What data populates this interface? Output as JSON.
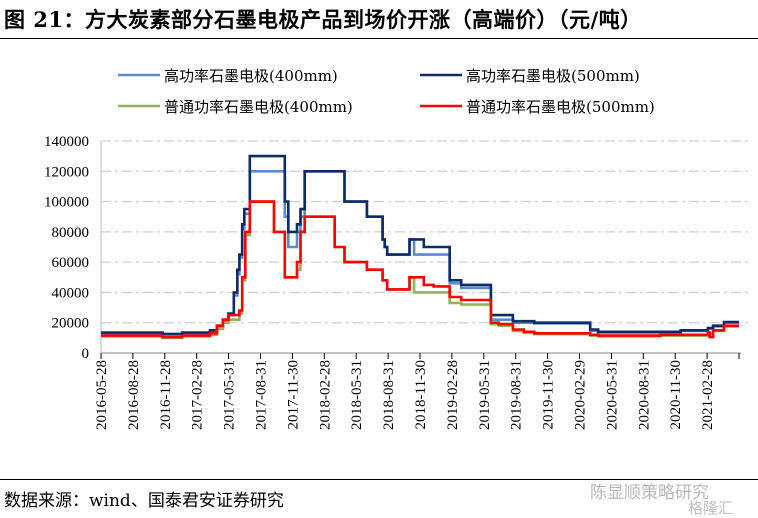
{
  "title": "图 21：方大炭素部分石墨电极产品到场价开涨（高端价）（元/吨）",
  "source": "数据来源：wind、国泰君安证券研究",
  "watermark": "陈显顺策略研究",
  "watermark2": "格隆汇",
  "chart_data": {
    "type": "line",
    "step": true,
    "title": "方大炭素部分石墨电极产品到场价开涨（高端价）（元/吨）",
    "xlabel": "",
    "ylabel": "元/吨",
    "ylim": [
      0,
      140000
    ],
    "yticks": [
      "0",
      "20000",
      "40000",
      "60000",
      "80000",
      "100000",
      "120000",
      "140000"
    ],
    "xlim": [
      "2016-05-28",
      "2021-05-28"
    ],
    "xticks": [
      "2016-05-28",
      "2016-08-28",
      "2016-11-28",
      "2017-02-28",
      "2017-05-31",
      "2017-08-31",
      "2017-11-30",
      "2018-02-28",
      "2018-05-31",
      "2018-08-31",
      "2018-11-30",
      "2019-02-28",
      "2019-05-31",
      "2019-08-31",
      "2019-11-30",
      "2020-02-29",
      "2020-05-31",
      "2020-08-31",
      "2020-11-30",
      "2021-02-28"
    ],
    "grid": "horizontal dash-dot",
    "legend_position": "top",
    "series": [
      {
        "name": "高功率石墨电极(400mm)",
        "color": "#5b8cc8",
        "points": [
          [
            "2016-05-28",
            13000
          ],
          [
            "2016-11-20",
            12500
          ],
          [
            "2017-01-15",
            13000
          ],
          [
            "2017-04-05",
            14500
          ],
          [
            "2017-04-25",
            17000
          ],
          [
            "2017-05-12",
            21000
          ],
          [
            "2017-05-28",
            25000
          ],
          [
            "2017-06-12",
            38000
          ],
          [
            "2017-06-22",
            52000
          ],
          [
            "2017-06-28",
            63000
          ],
          [
            "2017-07-06",
            82000
          ],
          [
            "2017-07-12",
            92000
          ],
          [
            "2017-07-28",
            120000
          ],
          [
            "2017-11-05",
            90000
          ],
          [
            "2017-11-15",
            70000
          ],
          [
            "2017-12-10",
            80000
          ],
          [
            "2017-12-20",
            90000
          ],
          [
            "2018-01-01",
            120000
          ],
          [
            "2018-04-25",
            100000
          ],
          [
            "2018-06-28",
            90000
          ],
          [
            "2018-08-12",
            75000
          ],
          [
            "2018-08-18",
            70000
          ],
          [
            "2018-08-25",
            65000
          ],
          [
            "2018-10-28",
            75000
          ],
          [
            "2018-11-10",
            65000
          ],
          [
            "2019-02-20",
            46000
          ],
          [
            "2019-03-25",
            43000
          ],
          [
            "2019-06-18",
            22000
          ],
          [
            "2019-08-20",
            20000
          ],
          [
            "2019-10-20",
            19500
          ],
          [
            "2020-03-28",
            14500
          ],
          [
            "2020-04-20",
            13500
          ],
          [
            "2020-12-12",
            14500
          ],
          [
            "2021-02-28",
            16000
          ],
          [
            "2021-03-15",
            17500
          ],
          [
            "2021-04-15",
            20000
          ],
          [
            "2021-05-28",
            20000
          ]
        ]
      },
      {
        "name": "高功率石墨电极(500mm)",
        "color": "#0d2a6b",
        "points": [
          [
            "2016-05-28",
            13500
          ],
          [
            "2016-11-20",
            12500
          ],
          [
            "2017-01-15",
            13500
          ],
          [
            "2017-04-05",
            15000
          ],
          [
            "2017-04-25",
            18000
          ],
          [
            "2017-05-12",
            22000
          ],
          [
            "2017-05-28",
            26000
          ],
          [
            "2017-06-12",
            40000
          ],
          [
            "2017-06-22",
            55000
          ],
          [
            "2017-06-28",
            65000
          ],
          [
            "2017-07-06",
            85000
          ],
          [
            "2017-07-12",
            95000
          ],
          [
            "2017-07-28",
            130000
          ],
          [
            "2017-11-05",
            100000
          ],
          [
            "2017-11-15",
            80000
          ],
          [
            "2017-12-10",
            85000
          ],
          [
            "2017-12-20",
            95000
          ],
          [
            "2018-01-01",
            120000
          ],
          [
            "2018-04-25",
            100000
          ],
          [
            "2018-06-28",
            90000
          ],
          [
            "2018-08-12",
            75000
          ],
          [
            "2018-08-18",
            70000
          ],
          [
            "2018-08-25",
            65000
          ],
          [
            "2018-10-28",
            75000
          ],
          [
            "2018-12-08",
            70000
          ],
          [
            "2019-02-20",
            48000
          ],
          [
            "2019-03-25",
            45000
          ],
          [
            "2019-06-18",
            25000
          ],
          [
            "2019-08-20",
            21000
          ],
          [
            "2019-10-20",
            20000
          ],
          [
            "2020-03-28",
            15500
          ],
          [
            "2020-04-20",
            14000
          ],
          [
            "2020-12-12",
            15000
          ],
          [
            "2021-02-28",
            16500
          ],
          [
            "2021-03-15",
            18000
          ],
          [
            "2021-04-15",
            20500
          ],
          [
            "2021-05-28",
            20500
          ]
        ]
      },
      {
        "name": "普通功率石墨电极(400mm)",
        "color": "#8db551",
        "points": [
          [
            "2016-05-28",
            11000
          ],
          [
            "2016-11-20",
            10000
          ],
          [
            "2017-01-15",
            11000
          ],
          [
            "2017-04-05",
            12000
          ],
          [
            "2017-04-25",
            16000
          ],
          [
            "2017-05-12",
            20000
          ],
          [
            "2017-05-28",
            22000
          ],
          [
            "2017-06-28",
            26000
          ],
          [
            "2017-07-06",
            48000
          ],
          [
            "2017-07-15",
            78000
          ],
          [
            "2017-07-28",
            100000
          ],
          [
            "2017-10-05",
            80000
          ],
          [
            "2017-11-05",
            50000
          ],
          [
            "2017-12-10",
            55000
          ],
          [
            "2017-12-20",
            80000
          ],
          [
            "2018-01-01",
            90000
          ],
          [
            "2018-03-28",
            70000
          ],
          [
            "2018-04-25",
            60000
          ],
          [
            "2018-06-28",
            55000
          ],
          [
            "2018-08-12",
            48000
          ],
          [
            "2018-08-25",
            42000
          ],
          [
            "2018-10-28",
            50000
          ],
          [
            "2018-11-10",
            40000
          ],
          [
            "2019-02-20",
            33000
          ],
          [
            "2019-03-25",
            32000
          ],
          [
            "2019-06-18",
            19000
          ],
          [
            "2019-07-10",
            18000
          ],
          [
            "2019-08-20",
            14500
          ],
          [
            "2019-09-20",
            13500
          ],
          [
            "2019-10-20",
            12500
          ],
          [
            "2020-03-28",
            11500
          ],
          [
            "2020-04-20",
            11000
          ],
          [
            "2020-10-15",
            11500
          ],
          [
            "2021-02-28",
            13000
          ],
          [
            "2021-03-15",
            14500
          ],
          [
            "2021-04-15",
            17500
          ],
          [
            "2021-05-28",
            17500
          ]
        ]
      },
      {
        "name": "普通功率石墨电极(500mm)",
        "color": "#ff0000",
        "points": [
          [
            "2016-05-28",
            11500
          ],
          [
            "2016-11-20",
            10500
          ],
          [
            "2017-01-15",
            11500
          ],
          [
            "2017-04-05",
            13000
          ],
          [
            "2017-04-25",
            18000
          ],
          [
            "2017-05-12",
            22000
          ],
          [
            "2017-05-28",
            25000
          ],
          [
            "2017-06-28",
            28000
          ],
          [
            "2017-07-06",
            50000
          ],
          [
            "2017-07-15",
            80000
          ],
          [
            "2017-07-28",
            100000
          ],
          [
            "2017-10-05",
            80000
          ],
          [
            "2017-11-05",
            50000
          ],
          [
            "2017-12-10",
            60000
          ],
          [
            "2017-12-20",
            80000
          ],
          [
            "2018-01-01",
            90000
          ],
          [
            "2018-03-28",
            70000
          ],
          [
            "2018-04-25",
            60000
          ],
          [
            "2018-06-28",
            55000
          ],
          [
            "2018-08-12",
            48000
          ],
          [
            "2018-08-25",
            42000
          ],
          [
            "2018-10-28",
            50000
          ],
          [
            "2018-12-08",
            45000
          ],
          [
            "2019-01-05",
            44000
          ],
          [
            "2019-02-20",
            37000
          ],
          [
            "2019-03-25",
            35000
          ],
          [
            "2019-06-18",
            20000
          ],
          [
            "2019-07-10",
            19000
          ],
          [
            "2019-08-20",
            15500
          ],
          [
            "2019-09-20",
            14000
          ],
          [
            "2019-10-20",
            13000
          ],
          [
            "2020-03-28",
            12000
          ],
          [
            "2020-04-20",
            11500
          ],
          [
            "2020-10-15",
            12000
          ],
          [
            "2021-02-28",
            13500
          ],
          [
            "2021-03-05",
            10500
          ],
          [
            "2021-03-15",
            15000
          ],
          [
            "2021-04-15",
            18000
          ],
          [
            "2021-05-28",
            18000
          ]
        ]
      }
    ]
  }
}
